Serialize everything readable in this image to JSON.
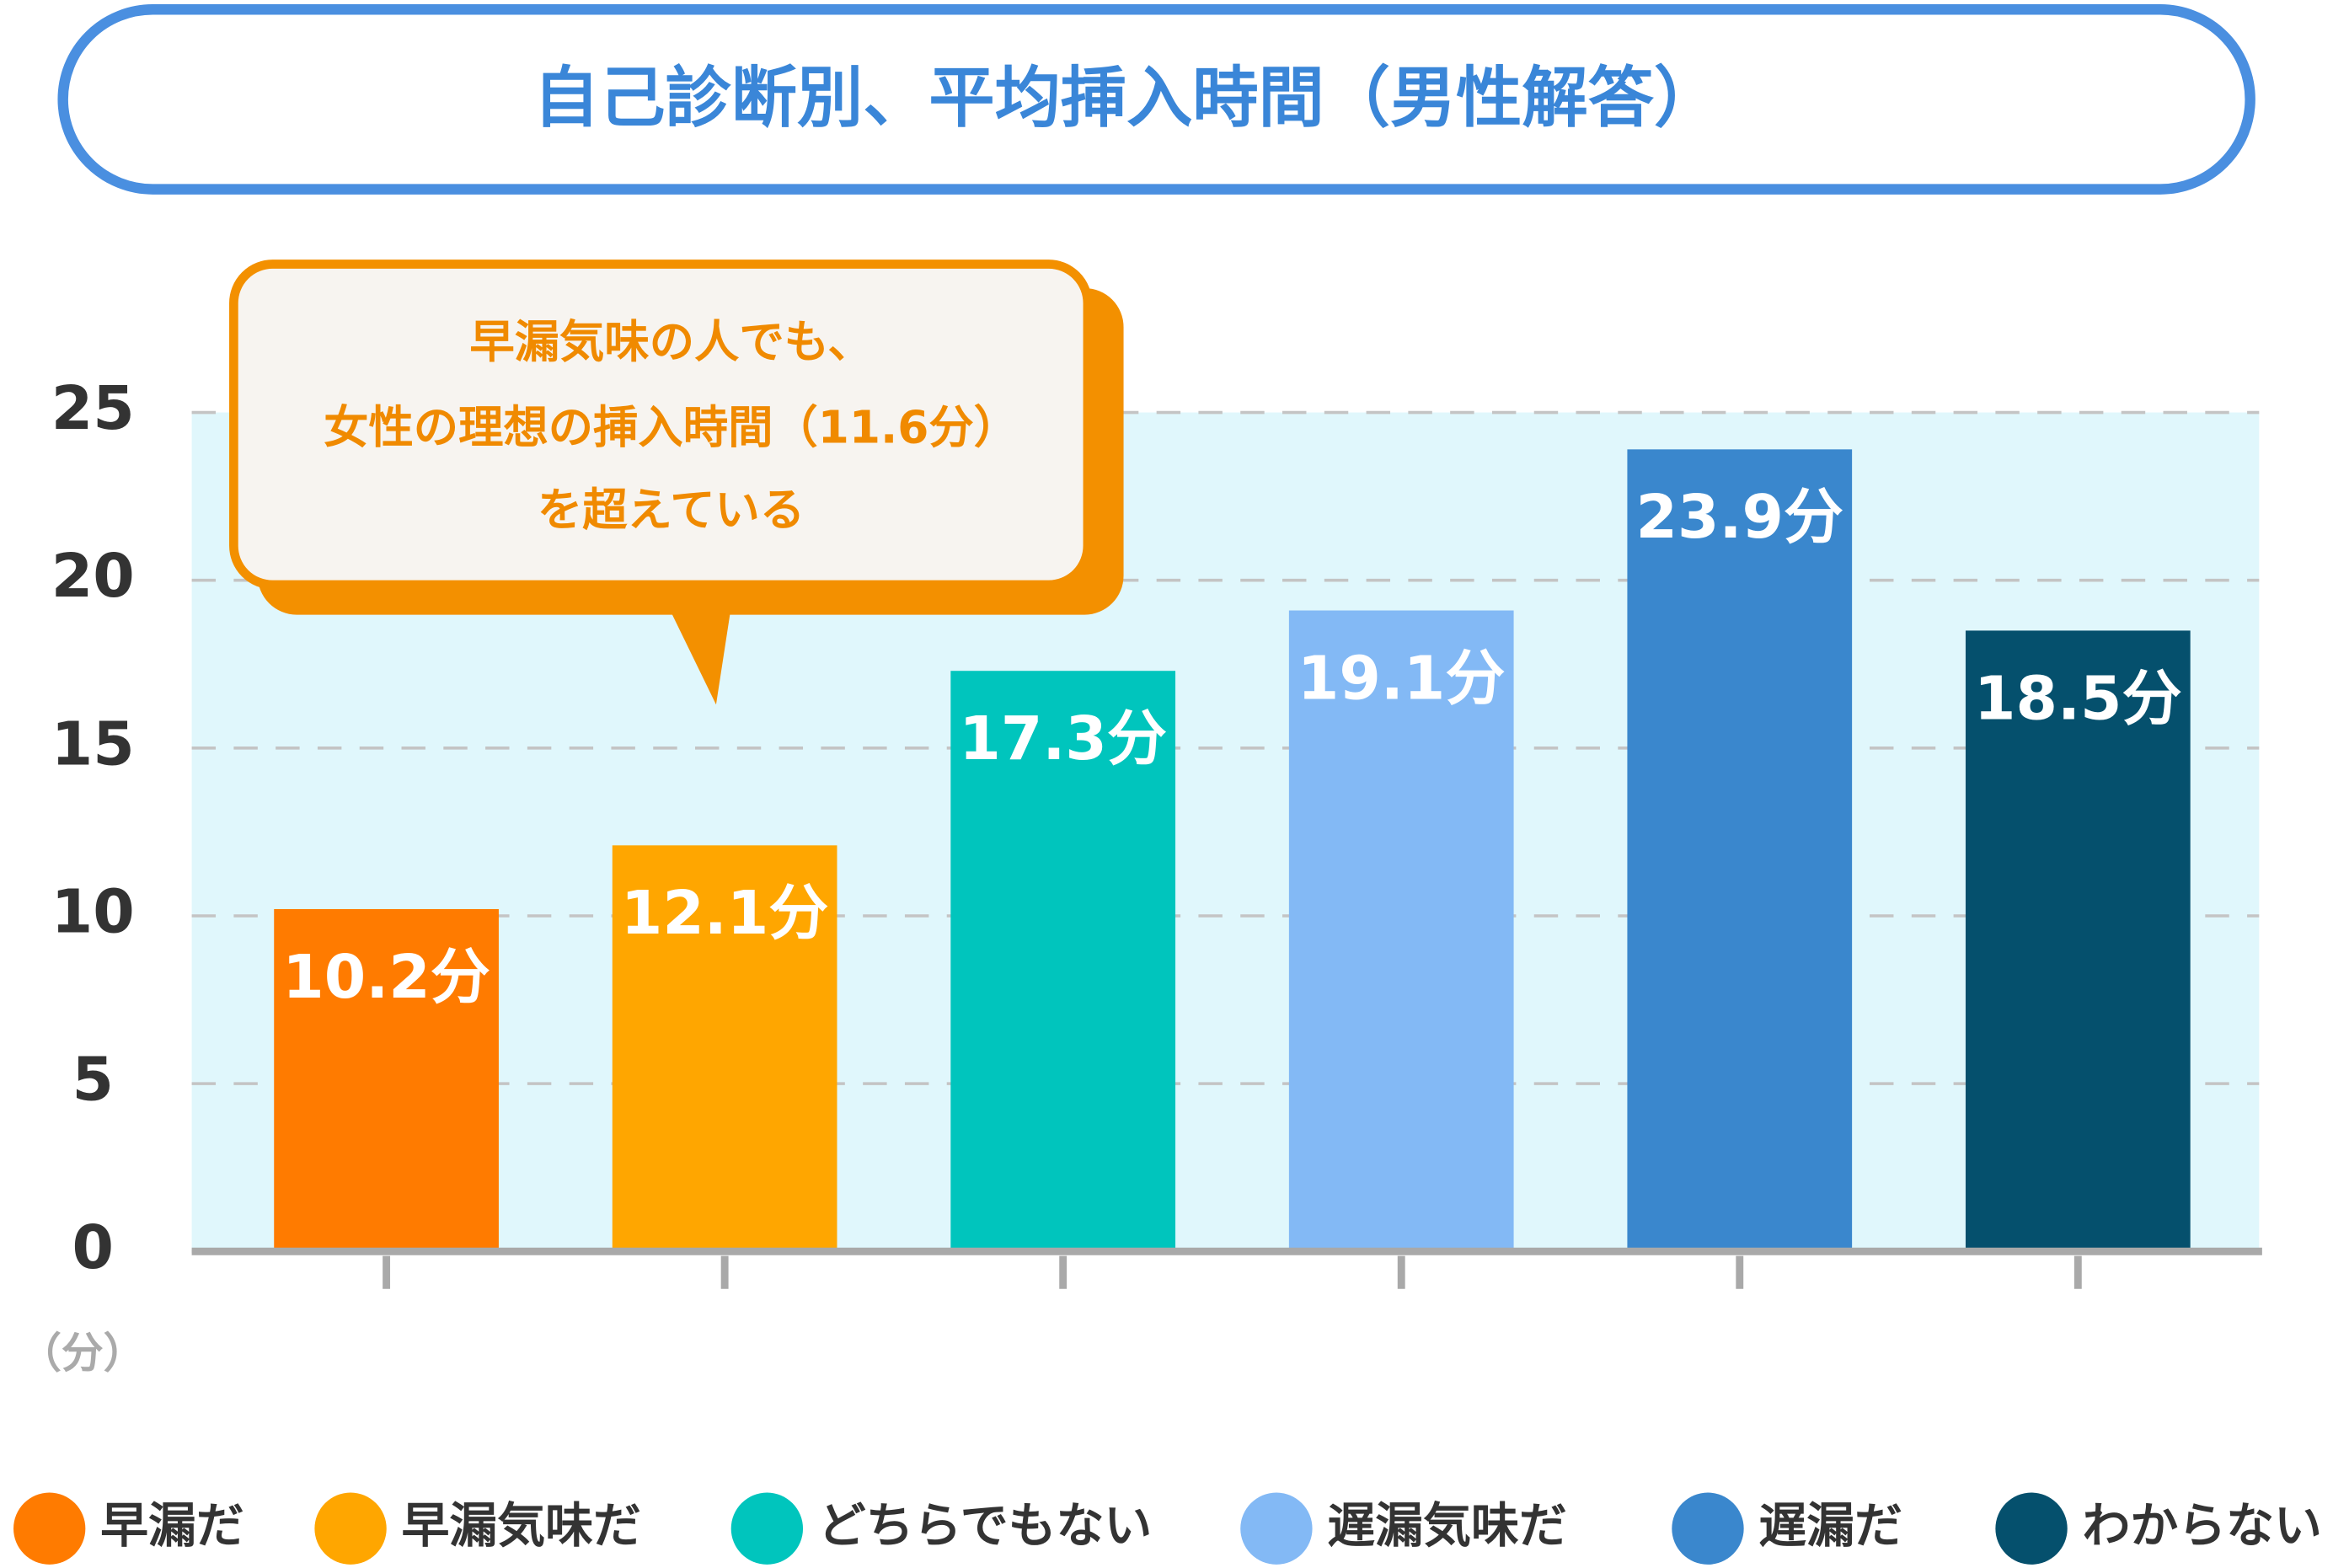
{
  "chart_data": {
    "type": "bar",
    "title": "自己診断別、平均挿入時間（男性解答）",
    "annotation": [
      "早漏気味の人でも、",
      "女性の理想の挿入時間（11.6分）",
      "を超えている"
    ],
    "y_label": "（分）",
    "categories": [
      "早漏だ",
      "早漏気味だ",
      "どちらでもない",
      "遅漏気味だ",
      "遅漏だ",
      "わからない"
    ],
    "values": [
      10.2,
      12.1,
      17.3,
      19.1,
      23.9,
      18.5
    ],
    "value_labels": [
      "10.2分",
      "12.1分",
      "17.3分",
      "19.1分",
      "23.9分",
      "18.5分"
    ],
    "colors": [
      "#ff7b00",
      "#ffa600",
      "#00c5bd",
      "#83b9f5",
      "#3a87cd",
      "#05506d"
    ],
    "ylim": [
      0,
      25
    ],
    "yticks": [
      0,
      5,
      10,
      15,
      20,
      25
    ],
    "grid": true,
    "legend": "bottom"
  }
}
